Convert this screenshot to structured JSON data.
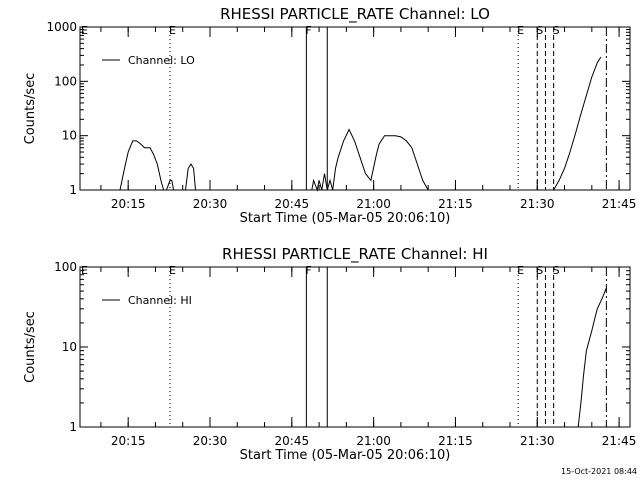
{
  "chart_data": [
    {
      "type": "line",
      "title": "RHESSI PARTICLE_RATE Channel: LO",
      "xlabel": "Start Time (05-Mar-05 20:06:10)",
      "ylabel": "Counts/sec",
      "yscale": "log",
      "ylim": [
        1,
        1000
      ],
      "xlim": [
        "20:06:10",
        "21:47:00"
      ],
      "xtick_labels": [
        "20:15",
        "20:30",
        "20:45",
        "21:00",
        "21:15",
        "21:30",
        "21:45"
      ],
      "ytick_labels": [
        "1",
        "10",
        "100",
        "1000"
      ],
      "legend": {
        "location": "top-left",
        "entries": [
          "Channel: LO"
        ]
      },
      "series": [
        {
          "name": "Channel: LO",
          "x": [
            "20:13:30",
            "20:14:20",
            "20:15:00",
            "20:15:50",
            "20:16:30",
            "20:17:20",
            "20:18:00",
            "20:19:00",
            "20:19:40",
            "20:20:20",
            "20:21:00",
            "20:21:30",
            "20:22:00",
            "20:22:40",
            "20:23:00",
            "20:23:20",
            "20:25:30",
            "20:26:00",
            "20:26:30",
            "20:27:00",
            "20:27:20",
            "20:48:40",
            "20:49:00",
            "20:49:40",
            "20:50:00",
            "20:50:30",
            "20:51:00",
            "20:51:30",
            "20:52:00",
            "20:52:30",
            "20:53:00",
            "20:53:30",
            "20:54:30",
            "20:55:30",
            "20:56:30",
            "20:57:30",
            "20:58:30",
            "20:59:30",
            "21:00:30",
            "21:01:00",
            "21:02:00",
            "21:03:00",
            "21:04:00",
            "21:05:00",
            "21:06:00",
            "21:07:00",
            "21:08:00",
            "21:09:00",
            "21:10:00",
            "21:11:00",
            "21:12:00",
            "21:13:00",
            "21:13:30",
            "21:33:00",
            "21:34:00",
            "21:35:00",
            "21:36:00",
            "21:37:00",
            "21:38:00",
            "21:39:00",
            "21:40:00",
            "21:41:00",
            "21:41:40"
          ],
          "y": [
            1,
            2.5,
            5,
            8,
            8,
            7,
            6,
            6,
            4.5,
            3,
            1.5,
            1,
            1,
            1.5,
            1.5,
            1,
            1,
            2.5,
            3,
            2.5,
            1,
            1,
            1.5,
            1,
            1.5,
            1,
            2,
            1,
            1.5,
            1,
            2.5,
            4,
            8,
            13,
            8,
            4,
            2,
            1.5,
            4.5,
            7,
            10,
            10,
            10,
            9.5,
            8,
            6,
            3,
            1.5,
            1,
            1,
            1,
            1,
            1,
            1,
            1.5,
            2.5,
            5,
            11,
            25,
            55,
            120,
            220,
            280
          ]
        }
      ],
      "vlines": [
        {
          "time": "20:22:40",
          "style": "dotted",
          "label": "E"
        },
        {
          "time": "20:47:40",
          "style": "solid",
          "label": "F"
        },
        {
          "time": "20:51:30",
          "style": "solid",
          "label": ""
        },
        {
          "time": "21:26:30",
          "style": "dotted",
          "label": "E"
        },
        {
          "time": "21:30:00",
          "style": "dashed",
          "label": "S"
        },
        {
          "time": "21:31:30",
          "style": "dashed",
          "label": ""
        },
        {
          "time": "21:33:00",
          "style": "dashed",
          "label": "S"
        },
        {
          "time": "21:42:40",
          "style": "dashdot",
          "label": ""
        }
      ],
      "corner_label": "E"
    },
    {
      "type": "line",
      "title": "RHESSI PARTICLE_RATE Channel: HI",
      "xlabel": "Start Time (05-Mar-05 20:06:10)",
      "ylabel": "Counts/sec",
      "yscale": "log",
      "ylim": [
        1,
        100
      ],
      "xlim": [
        "20:06:10",
        "21:47:00"
      ],
      "xtick_labels": [
        "20:15",
        "20:30",
        "20:45",
        "21:00",
        "21:15",
        "21:30",
        "21:45"
      ],
      "ytick_labels": [
        "1",
        "10",
        "100"
      ],
      "legend": {
        "location": "top-left",
        "entries": [
          "Channel: HI"
        ]
      },
      "series": [
        {
          "name": "Channel: HI",
          "x": [
            "21:37:30",
            "21:38:00",
            "21:38:30",
            "21:39:00",
            "21:40:00",
            "21:40:30",
            "21:41:00",
            "21:42:00",
            "21:42:40"
          ],
          "y": [
            1,
            2,
            4.5,
            9,
            16,
            22,
            30,
            42,
            55
          ]
        }
      ],
      "vlines": [
        {
          "time": "20:22:40",
          "style": "dotted",
          "label": "E"
        },
        {
          "time": "20:47:40",
          "style": "solid",
          "label": "F"
        },
        {
          "time": "20:51:30",
          "style": "solid",
          "label": ""
        },
        {
          "time": "21:26:30",
          "style": "dotted",
          "label": "E"
        },
        {
          "time": "21:30:00",
          "style": "dashed",
          "label": "S"
        },
        {
          "time": "21:31:30",
          "style": "dashed",
          "label": ""
        },
        {
          "time": "21:33:00",
          "style": "dashed",
          "label": "S"
        },
        {
          "time": "21:42:40",
          "style": "dashdot",
          "label": ""
        }
      ],
      "corner_label": "E"
    }
  ],
  "footer": {
    "timestamp": "15-Oct-2021 08:44"
  }
}
